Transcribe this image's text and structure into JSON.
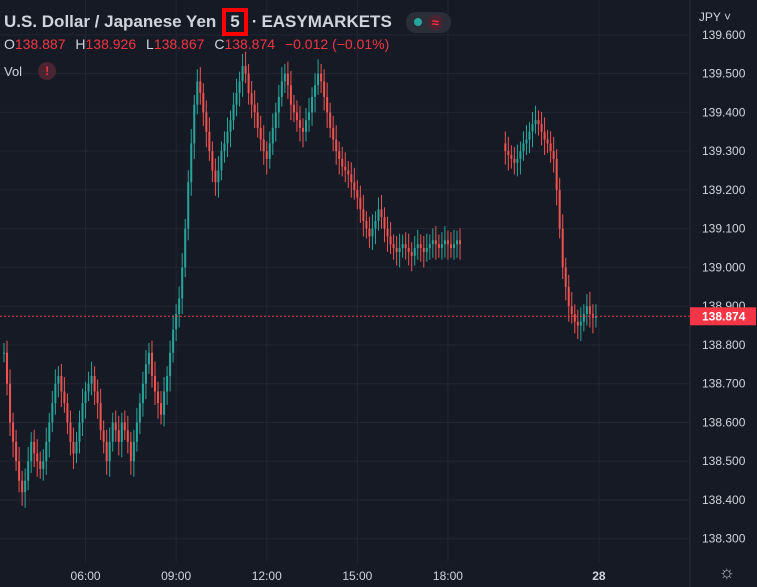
{
  "header": {
    "symbol_name": "U.S. Dollar / Japanese Yen",
    "separator": "·",
    "interval": "5",
    "exchange": "EASYMARKETS",
    "wave_glyph": "≈"
  },
  "ohlc": {
    "o_label": "O",
    "o_value": "138.887",
    "h_label": "H",
    "h_value": "138.926",
    "l_label": "L",
    "l_value": "138.867",
    "c_label": "C",
    "c_value": "138.874",
    "change": "−0.012 (−0.01%)"
  },
  "volume": {
    "label": "Vol",
    "warning": "!"
  },
  "currency_selector": "JPY ˅",
  "colors": {
    "background": "#161a25",
    "up": "#26a69a",
    "down": "#ef5350",
    "grid": "#222634",
    "text": "#d1d4dc",
    "price_tag": "#f23645"
  },
  "chart_data": {
    "type": "candlestick",
    "last_price": 138.874,
    "ylim": [
      138.24,
      139.69
    ],
    "y_ticks": [
      "138.300",
      "138.400",
      "138.500",
      "138.600",
      "138.700",
      "138.800",
      "138.900",
      "139.000",
      "139.100",
      "139.200",
      "139.300",
      "139.400",
      "139.500",
      "139.600"
    ],
    "y_tick_values": [
      138.3,
      138.4,
      138.5,
      138.6,
      138.7,
      138.8,
      138.9,
      139.0,
      139.1,
      139.2,
      139.3,
      139.4,
      139.5,
      139.6
    ],
    "x_ticks": [
      "06:00",
      "09:00",
      "12:00",
      "15:00",
      "18:00",
      "28"
    ],
    "x_tick_index": [
      27,
      57,
      87,
      117,
      147,
      197
    ],
    "total_bars": 216,
    "closes": [
      138.78,
      138.7,
      138.6,
      138.55,
      138.5,
      138.45,
      138.42,
      138.45,
      138.5,
      138.55,
      138.52,
      138.5,
      138.48,
      138.5,
      138.55,
      138.6,
      138.65,
      138.7,
      138.72,
      138.68,
      138.65,
      138.6,
      138.55,
      138.52,
      138.55,
      138.6,
      138.65,
      138.68,
      138.7,
      138.72,
      138.68,
      138.65,
      138.58,
      138.55,
      138.5,
      138.55,
      138.6,
      138.58,
      138.55,
      138.6,
      138.58,
      138.55,
      138.5,
      138.55,
      138.6,
      138.65,
      138.7,
      138.75,
      138.78,
      138.72,
      138.68,
      138.65,
      138.62,
      138.68,
      138.72,
      138.78,
      138.84,
      138.88,
      138.92,
      139.0,
      139.1,
      139.22,
      139.32,
      139.42,
      139.48,
      139.45,
      139.4,
      139.35,
      139.3,
      139.25,
      139.22,
      139.25,
      139.3,
      139.32,
      139.35,
      139.38,
      139.42,
      139.45,
      139.48,
      139.52,
      139.5,
      139.45,
      139.42,
      139.4,
      139.36,
      139.33,
      139.3,
      139.28,
      139.32,
      139.36,
      139.4,
      139.44,
      139.48,
      139.5,
      139.47,
      139.42,
      139.4,
      139.38,
      139.36,
      139.35,
      139.38,
      139.4,
      139.44,
      139.47,
      139.5,
      139.48,
      139.44,
      139.4,
      139.36,
      139.33,
      139.3,
      139.28,
      139.26,
      139.25,
      139.24,
      139.22,
      139.2,
      139.18,
      139.15,
      139.12,
      139.1,
      139.08,
      139.1,
      139.12,
      139.15,
      139.13,
      139.1,
      139.08,
      139.06,
      139.05,
      139.04,
      139.05,
      139.06,
      139.05,
      139.04,
      139.03,
      139.05,
      139.06,
      139.05,
      139.04,
      139.05,
      139.06,
      139.07,
      139.06,
      139.05,
      139.06,
      139.07,
      139.06,
      139.05,
      139.06,
      139.07,
      139.06,
      null,
      null,
      null,
      null,
      null,
      null,
      null,
      null,
      null,
      null,
      null,
      null,
      null,
      null,
      139.3,
      139.29,
      139.28,
      139.27,
      139.28,
      139.3,
      139.32,
      139.33,
      139.35,
      139.37,
      139.38,
      139.37,
      139.35,
      139.33,
      139.32,
      139.3,
      139.28,
      139.2,
      139.1,
      139.0,
      138.95,
      138.9,
      138.88,
      138.86,
      138.85,
      138.86,
      138.88,
      138.9,
      138.88,
      138.87,
      138.874
    ]
  }
}
